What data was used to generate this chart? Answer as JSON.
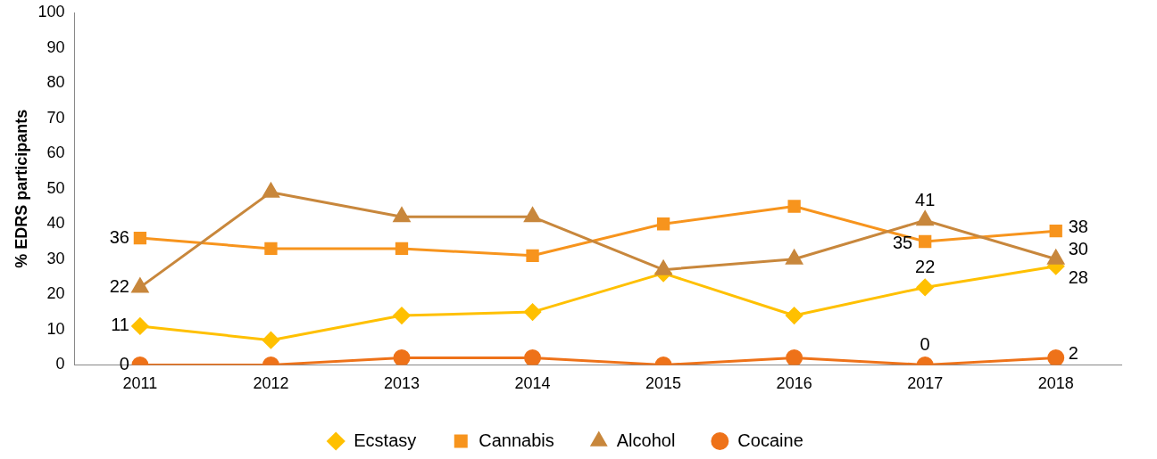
{
  "chart_data": {
    "type": "line",
    "ylabel": "% EDRS participants",
    "categories": [
      "2011",
      "2012",
      "2013",
      "2014",
      "2015",
      "2016",
      "2017",
      "2018"
    ],
    "ylim": [
      0,
      100
    ],
    "yticks": [
      0,
      10,
      20,
      30,
      40,
      50,
      60,
      70,
      80,
      90,
      100
    ],
    "grid": false,
    "legend": "bottom",
    "line_style": "solid",
    "series": [
      {
        "name": "Ecstasy",
        "color": "#ffc000",
        "marker": "diamond",
        "values": [
          11,
          7,
          14,
          15,
          26,
          14,
          22,
          28
        ],
        "value_labels": [
          "11",
          null,
          null,
          null,
          null,
          null,
          "22",
          "28"
        ]
      },
      {
        "name": "Cannabis",
        "color": "#f7941d",
        "marker": "square",
        "values": [
          36,
          33,
          33,
          31,
          40,
          45,
          35,
          38
        ],
        "value_labels": [
          "36",
          null,
          null,
          null,
          null,
          null,
          "35",
          "38"
        ]
      },
      {
        "name": "Alcohol",
        "color": "#c8873c",
        "marker": "triangle",
        "values": [
          22,
          49,
          42,
          42,
          27,
          30,
          41,
          30
        ],
        "value_labels": [
          "22",
          null,
          null,
          null,
          null,
          null,
          "41",
          "30"
        ]
      },
      {
        "name": "Cocaine",
        "color": "#ee7219",
        "marker": "circle",
        "values": [
          0,
          0,
          2,
          2,
          0,
          2,
          0,
          2
        ],
        "value_labels": [
          "0",
          null,
          null,
          null,
          null,
          null,
          "0",
          "2"
        ]
      }
    ]
  }
}
